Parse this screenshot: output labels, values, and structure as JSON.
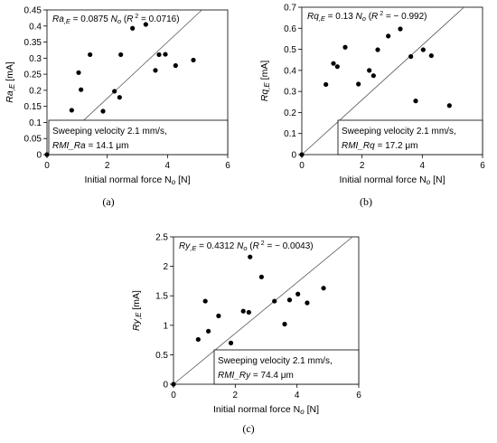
{
  "chart_data": [
    {
      "type": "scatter",
      "panel_label": "(a)",
      "xlim": [
        0,
        6
      ],
      "ylim": [
        0,
        0.45
      ],
      "xticks": [
        "0",
        "2",
        "4",
        "6"
      ],
      "yticks": [
        "0",
        "0.05",
        "0.1",
        "0.15",
        "0.2",
        "0.25",
        "0.3",
        "0.35",
        "0.4",
        "0.45"
      ],
      "xlabel": "Initial normal force N",
      "xlabel_sub": "o",
      "xlabel_unit": "[N]",
      "ylabel": "Ra",
      "ylabel_sub": ",E",
      "ylabel_unit": "[mA]",
      "equation": "Ra,E = 0.0875 No (R² = 0.0716)",
      "fit_slope": 0.0875,
      "box_line1": "Sweeping velocity 2.1 mm/s,",
      "box_line2": "RMI_Ra = 14.1 μm",
      "grid": false,
      "points": {
        "x": [
          0,
          0.82,
          1.05,
          1.13,
          1.43,
          1.86,
          2.24,
          2.41,
          2.45,
          2.84,
          3.28,
          3.6,
          3.72,
          3.93,
          4.27,
          4.86
        ],
        "y": [
          0,
          0.138,
          0.255,
          0.202,
          0.311,
          0.135,
          0.197,
          0.178,
          0.311,
          0.393,
          0.405,
          0.262,
          0.311,
          0.312,
          0.277,
          0.294
        ]
      }
    },
    {
      "type": "scatter",
      "panel_label": "(b)",
      "xlim": [
        0,
        6
      ],
      "ylim": [
        0,
        0.7
      ],
      "xticks": [
        "0",
        "2",
        "4",
        "6"
      ],
      "yticks": [
        "0",
        "0.1",
        "0.2",
        "0.3",
        "0.4",
        "0.5",
        "0.6",
        "0.7"
      ],
      "xlabel": "Initial normal force N",
      "xlabel_sub": "o",
      "xlabel_unit": "[N]",
      "ylabel": "Rq",
      "ylabel_sub": ",E",
      "ylabel_unit": "[mA]",
      "equation": "Rq,E = 0.13 No (R² = − 0.992)",
      "fit_slope": 0.13,
      "box_line1": "Sweeping velocity 2.1 mm/s,",
      "box_line2": "RMI_Rq = 17.2 μm",
      "grid": false,
      "points": {
        "x": [
          0,
          0.8,
          1.05,
          1.18,
          1.44,
          1.88,
          2.24,
          2.38,
          2.52,
          2.87,
          3.27,
          3.62,
          3.78,
          4.03,
          4.3,
          4.9
        ],
        "y": [
          0,
          0.333,
          0.433,
          0.418,
          0.51,
          0.335,
          0.4,
          0.375,
          0.498,
          0.563,
          0.597,
          0.466,
          0.255,
          0.498,
          0.47,
          0.233
        ]
      }
    },
    {
      "type": "scatter",
      "panel_label": "(c)",
      "xlim": [
        0,
        6
      ],
      "ylim": [
        0,
        2.5
      ],
      "xticks": [
        "0",
        "2",
        "4",
        "6"
      ],
      "yticks": [
        "0",
        "0.5",
        "1",
        "1.5",
        "2",
        "2.5"
      ],
      "xlabel": "Initial normal force N",
      "xlabel_sub": "o",
      "xlabel_unit": "[N]",
      "ylabel": "Ry",
      "ylabel_sub": ",E",
      "ylabel_unit": "[mA]",
      "equation": "Ry,E = 0.4312 No (R² = − 0.0043)",
      "fit_slope": 0.4312,
      "box_line1": "Sweeping velocity 2.1 mm/s,",
      "box_line2": "RMI_Ry = 74.4 μm",
      "grid": false,
      "points": {
        "x": [
          0,
          0.8,
          1.03,
          1.13,
          1.46,
          1.86,
          2.26,
          2.44,
          2.48,
          2.85,
          3.27,
          3.6,
          3.76,
          4.03,
          4.33,
          4.86
        ],
        "y": [
          0,
          0.76,
          1.41,
          0.9,
          1.16,
          0.7,
          1.24,
          1.22,
          2.16,
          1.82,
          1.41,
          1.02,
          1.43,
          1.53,
          1.38,
          1.63
        ]
      }
    }
  ]
}
